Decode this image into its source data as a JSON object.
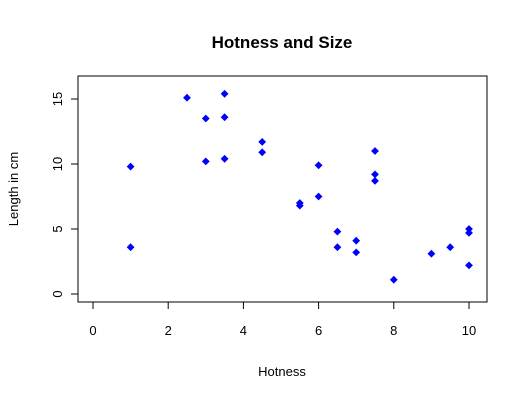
{
  "chart_data": {
    "type": "scatter",
    "title": "Hotness and Size",
    "xlabel": "Hotness",
    "ylabel": "Length in cm",
    "xlim": [
      0,
      10
    ],
    "ylim": [
      0,
      15
    ],
    "x_ticks": [
      0,
      2,
      4,
      6,
      8,
      10
    ],
    "y_ticks": [
      0,
      5,
      10,
      15
    ],
    "x_tick_labels": [
      "0",
      "2",
      "4",
      "6",
      "8",
      "10"
    ],
    "y_tick_labels": [
      "0",
      "5",
      "10",
      "15"
    ],
    "grid": false,
    "marker_color": "#0000ff",
    "points": [
      {
        "x": 1.0,
        "y": 9.8
      },
      {
        "x": 1.0,
        "y": 3.6
      },
      {
        "x": 2.5,
        "y": 15.1
      },
      {
        "x": 3.0,
        "y": 13.5
      },
      {
        "x": 3.0,
        "y": 10.2
      },
      {
        "x": 3.5,
        "y": 15.4
      },
      {
        "x": 3.5,
        "y": 13.6
      },
      {
        "x": 3.5,
        "y": 10.4
      },
      {
        "x": 4.5,
        "y": 11.7
      },
      {
        "x": 4.5,
        "y": 10.9
      },
      {
        "x": 5.5,
        "y": 7.0
      },
      {
        "x": 5.5,
        "y": 6.8
      },
      {
        "x": 6.0,
        "y": 9.9
      },
      {
        "x": 6.0,
        "y": 7.5
      },
      {
        "x": 6.5,
        "y": 4.8
      },
      {
        "x": 6.5,
        "y": 3.6
      },
      {
        "x": 7.0,
        "y": 4.1
      },
      {
        "x": 7.0,
        "y": 3.2
      },
      {
        "x": 7.5,
        "y": 11.0
      },
      {
        "x": 7.5,
        "y": 9.2
      },
      {
        "x": 7.5,
        "y": 8.7
      },
      {
        "x": 8.0,
        "y": 1.1
      },
      {
        "x": 9.0,
        "y": 3.1
      },
      {
        "x": 9.5,
        "y": 3.6
      },
      {
        "x": 10.0,
        "y": 5.0
      },
      {
        "x": 10.0,
        "y": 4.7
      },
      {
        "x": 10.0,
        "y": 2.2
      }
    ]
  }
}
